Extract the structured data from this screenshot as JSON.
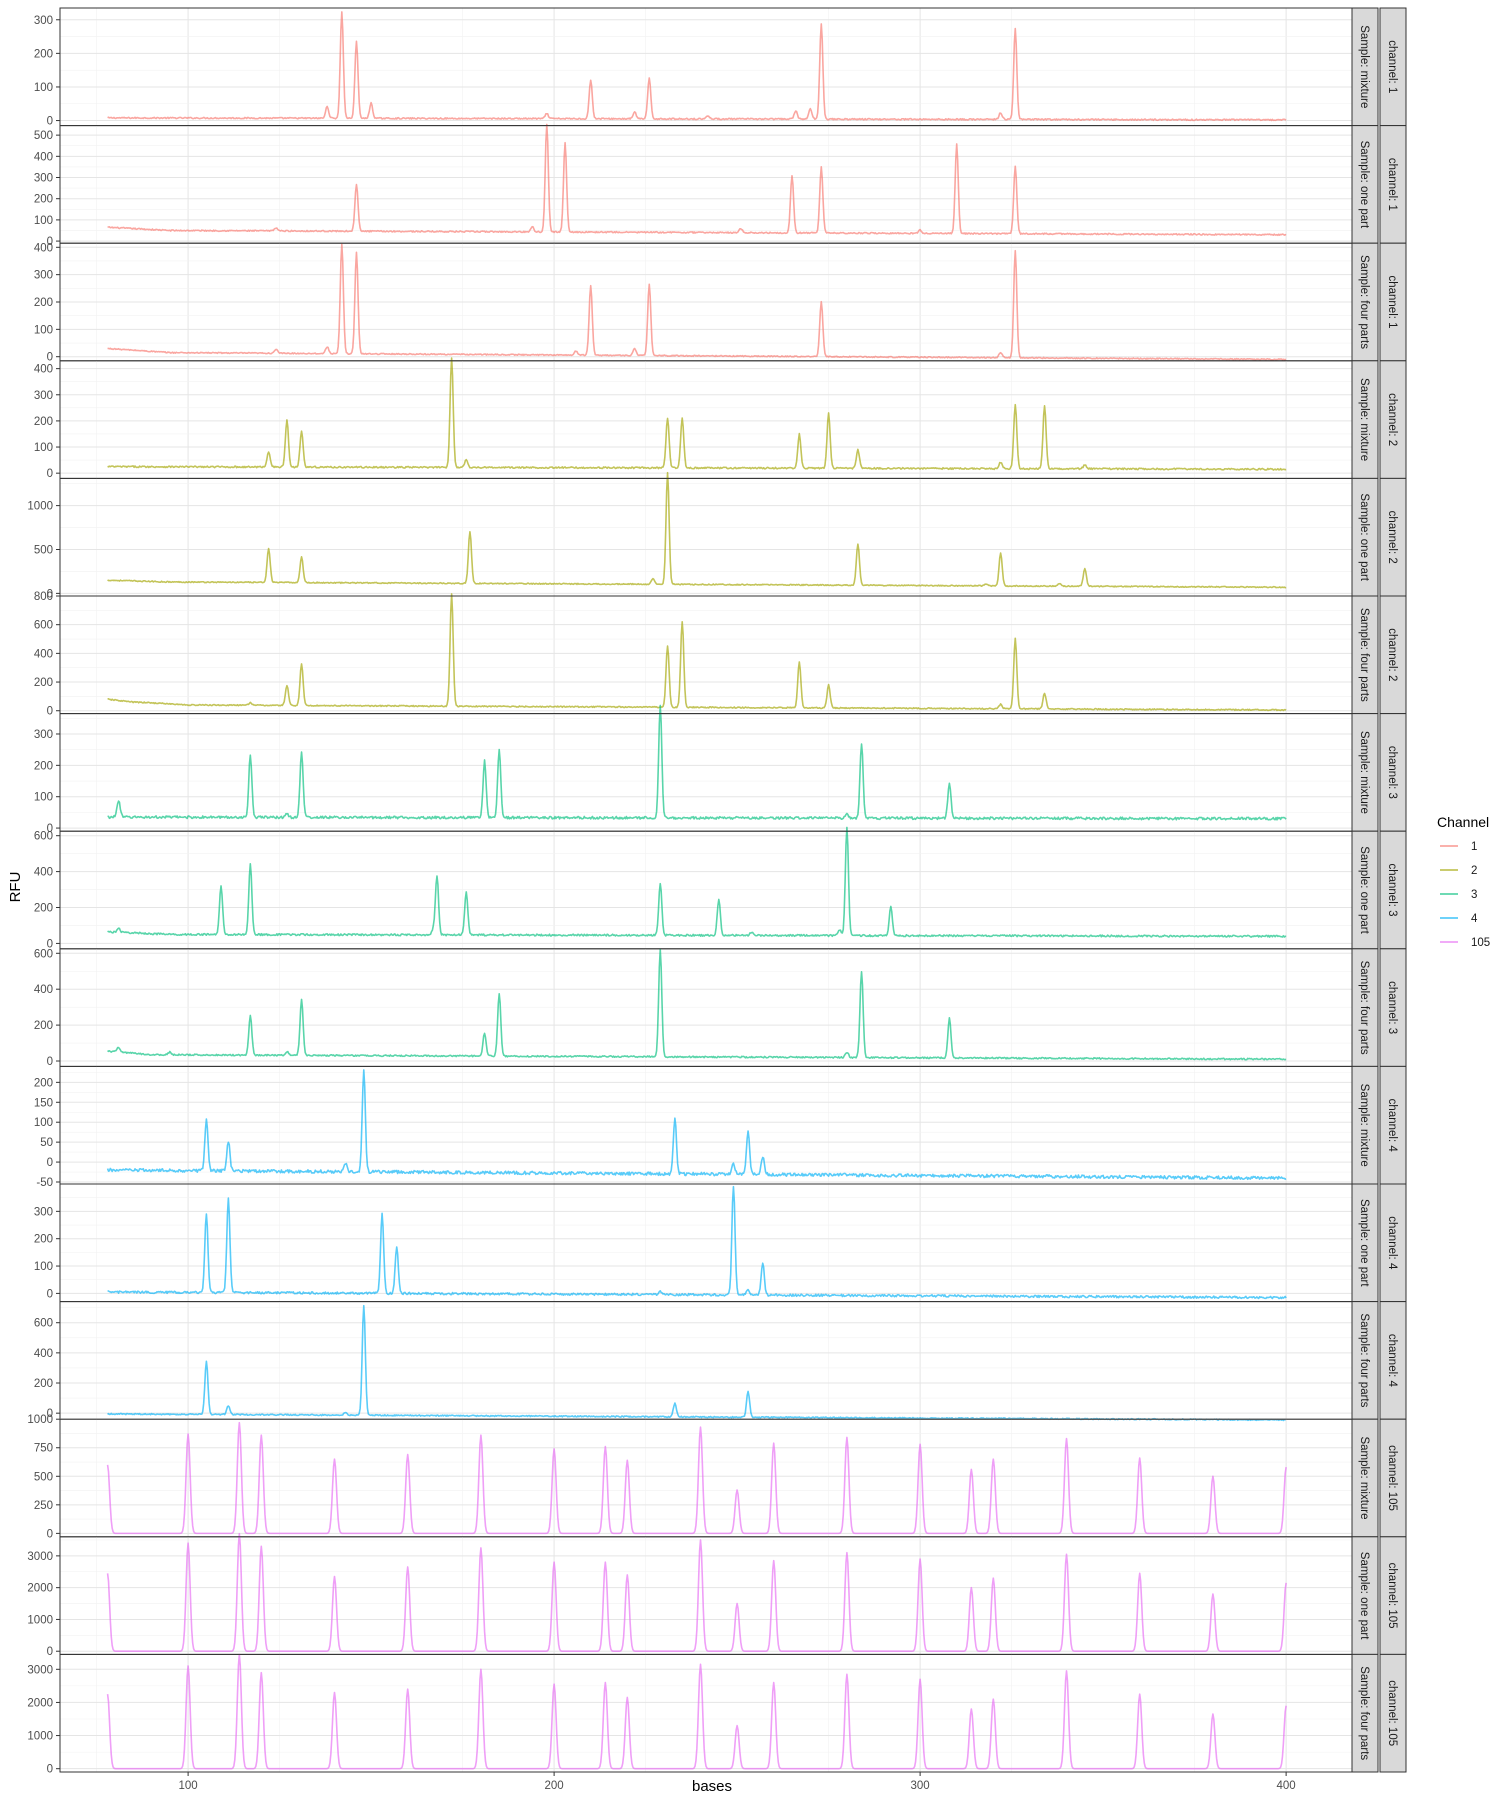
{
  "chart_data": {
    "type": "line",
    "xlabel": "bases",
    "ylabel": "RFU",
    "x_ticks": [
      100,
      200,
      300,
      400
    ],
    "x_range": [
      65,
      418
    ],
    "grid": true,
    "legend": {
      "title": "Channel",
      "placement": "right",
      "items": [
        {
          "label": "1",
          "color": "#F8766D"
        },
        {
          "label": "2",
          "color": "#A3A500"
        },
        {
          "label": "3",
          "color": "#00BF7D"
        },
        {
          "label": "4",
          "color": "#00B0F6"
        },
        {
          "label": "105",
          "color": "#E76BF3"
        }
      ]
    },
    "panels": [
      {
        "channel": "1",
        "strip_channel": "channel: 1",
        "strip_sample": "Sample: mixture",
        "color": "#F8766D",
        "ylim": [
          -15,
          335
        ],
        "yticks": [
          0,
          100,
          200,
          300
        ],
        "baseline": [
          [
            78,
            8
          ],
          [
            400,
            2
          ]
        ],
        "noise": 2,
        "peaks": [
          [
            138,
            35
          ],
          [
            142,
            315
          ],
          [
            146,
            230
          ],
          [
            150,
            45
          ],
          [
            198,
            15
          ],
          [
            210,
            115
          ],
          [
            222,
            20
          ],
          [
            226,
            120
          ],
          [
            242,
            10
          ],
          [
            266,
            25
          ],
          [
            270,
            30
          ],
          [
            273,
            285
          ],
          [
            322,
            20
          ],
          [
            326,
            270
          ]
        ]
      },
      {
        "channel": "1",
        "strip_channel": "channel: 1",
        "strip_sample": "Sample: one part",
        "color": "#F8766D",
        "ylim": [
          -10,
          545
        ],
        "yticks": [
          0,
          100,
          200,
          300,
          400,
          500
        ],
        "baseline": [
          [
            78,
            65
          ],
          [
            95,
            50
          ],
          [
            400,
            30
          ]
        ],
        "noise": 3,
        "peaks": [
          [
            124,
            15
          ],
          [
            146,
            220
          ],
          [
            194,
            25
          ],
          [
            198,
            510
          ],
          [
            203,
            420
          ],
          [
            251,
            20
          ],
          [
            265,
            270
          ],
          [
            273,
            310
          ],
          [
            300,
            15
          ],
          [
            310,
            420
          ],
          [
            326,
            320
          ]
        ]
      },
      {
        "channel": "1",
        "strip_channel": "channel: 1",
        "strip_sample": "Sample: four parts",
        "color": "#F8766D",
        "ylim": [
          -15,
          415
        ],
        "yticks": [
          0,
          100,
          200,
          300,
          400
        ],
        "baseline": [
          [
            78,
            30
          ],
          [
            95,
            15
          ],
          [
            400,
            -10
          ]
        ],
        "noise": 2,
        "peaks": [
          [
            124,
            15
          ],
          [
            138,
            25
          ],
          [
            142,
            400
          ],
          [
            146,
            370
          ],
          [
            206,
            15
          ],
          [
            210,
            255
          ],
          [
            222,
            25
          ],
          [
            226,
            260
          ],
          [
            273,
            200
          ],
          [
            322,
            20
          ],
          [
            326,
            390
          ]
        ]
      },
      {
        "channel": "2",
        "strip_channel": "channel: 2",
        "strip_sample": "Sample: mixture",
        "color": "#A3A500",
        "ylim": [
          -20,
          430
        ],
        "yticks": [
          0,
          100,
          200,
          300,
          400
        ],
        "baseline": [
          [
            78,
            25
          ],
          [
            400,
            15
          ]
        ],
        "noise": 3,
        "peaks": [
          [
            122,
            60
          ],
          [
            127,
            180
          ],
          [
            131,
            140
          ],
          [
            172,
            420
          ],
          [
            176,
            30
          ],
          [
            231,
            190
          ],
          [
            235,
            190
          ],
          [
            267,
            130
          ],
          [
            275,
            210
          ],
          [
            283,
            70
          ],
          [
            322,
            25
          ],
          [
            326,
            245
          ],
          [
            334,
            240
          ],
          [
            345,
            15
          ]
        ]
      },
      {
        "channel": "2",
        "strip_channel": "channel: 2",
        "strip_sample": "Sample: one part",
        "color": "#A3A500",
        "ylim": [
          -30,
          1310
        ],
        "yticks": [
          0,
          500,
          1000
        ],
        "baseline": [
          [
            78,
            150
          ],
          [
            95,
            130
          ],
          [
            400,
            70
          ]
        ],
        "noise": 6,
        "peaks": [
          [
            122,
            390
          ],
          [
            131,
            290
          ],
          [
            177,
            590
          ],
          [
            227,
            60
          ],
          [
            231,
            1270
          ],
          [
            283,
            470
          ],
          [
            318,
            20
          ],
          [
            322,
            380
          ],
          [
            338,
            30
          ],
          [
            345,
            200
          ]
        ]
      },
      {
        "channel": "2",
        "strip_channel": "channel: 2",
        "strip_sample": "Sample: four parts",
        "color": "#A3A500",
        "ylim": [
          -20,
          800
        ],
        "yticks": [
          0,
          200,
          400,
          600,
          800
        ],
        "baseline": [
          [
            78,
            80
          ],
          [
            85,
            60
          ],
          [
            90,
            55
          ],
          [
            100,
            40
          ],
          [
            400,
            5
          ]
        ],
        "noise": 4,
        "peaks": [
          [
            117,
            20
          ],
          [
            127,
            140
          ],
          [
            131,
            290
          ],
          [
            172,
            780
          ],
          [
            231,
            430
          ],
          [
            235,
            600
          ],
          [
            267,
            320
          ],
          [
            275,
            160
          ],
          [
            322,
            30
          ],
          [
            326,
            490
          ],
          [
            334,
            110
          ]
        ]
      },
      {
        "channel": "3",
        "strip_channel": "channel: 3",
        "strip_sample": "Sample: mixture",
        "color": "#00BF7D",
        "ylim": [
          -10,
          365
        ],
        "yticks": [
          0,
          100,
          200,
          300
        ],
        "baseline": [
          [
            78,
            35
          ],
          [
            400,
            30
          ]
        ],
        "noise": 4,
        "peaks": [
          [
            81,
            55
          ],
          [
            117,
            200
          ],
          [
            127,
            10
          ],
          [
            131,
            210
          ],
          [
            181,
            180
          ],
          [
            185,
            220
          ],
          [
            229,
            360
          ],
          [
            280,
            15
          ],
          [
            284,
            240
          ],
          [
            308,
            115
          ]
        ]
      },
      {
        "channel": "3",
        "strip_channel": "channel: 3",
        "strip_sample": "Sample: one part",
        "color": "#00BF7D",
        "ylim": [
          -30,
          625
        ],
        "yticks": [
          0,
          200,
          400,
          600
        ],
        "baseline": [
          [
            78,
            65
          ],
          [
            95,
            50
          ],
          [
            400,
            40
          ]
        ],
        "noise": 5,
        "peaks": [
          [
            81,
            20
          ],
          [
            109,
            270
          ],
          [
            117,
            390
          ],
          [
            167,
            30
          ],
          [
            168,
            330
          ],
          [
            176,
            240
          ],
          [
            229,
            290
          ],
          [
            245,
            200
          ],
          [
            254,
            20
          ],
          [
            278,
            30
          ],
          [
            280,
            600
          ],
          [
            292,
            160
          ]
        ]
      },
      {
        "channel": "3",
        "strip_channel": "channel: 3",
        "strip_sample": "Sample: four parts",
        "color": "#00BF7D",
        "ylim": [
          -30,
          625
        ],
        "yticks": [
          0,
          200,
          400,
          600
        ],
        "baseline": [
          [
            78,
            55
          ],
          [
            90,
            35
          ],
          [
            400,
            10
          ]
        ],
        "noise": 4,
        "peaks": [
          [
            81,
            25
          ],
          [
            95,
            15
          ],
          [
            117,
            220
          ],
          [
            127,
            20
          ],
          [
            131,
            310
          ],
          [
            181,
            130
          ],
          [
            185,
            350
          ],
          [
            229,
            600
          ],
          [
            280,
            30
          ],
          [
            284,
            480
          ],
          [
            308,
            220
          ]
        ]
      },
      {
        "channel": "4",
        "strip_channel": "channel: 4",
        "strip_sample": "Sample: mixture",
        "color": "#00B0F6",
        "ylim": [
          -55,
          240
        ],
        "yticks": [
          -50,
          0,
          50,
          100,
          150,
          200
        ],
        "baseline": [
          [
            78,
            -20
          ],
          [
            400,
            -40
          ]
        ],
        "noise": 4,
        "peaks": [
          [
            105,
            130
          ],
          [
            111,
            75
          ],
          [
            143,
            20
          ],
          [
            148,
            255
          ],
          [
            233,
            140
          ],
          [
            249,
            25
          ],
          [
            253,
            110
          ],
          [
            257,
            45
          ]
        ]
      },
      {
        "channel": "4",
        "strip_channel": "channel: 4",
        "strip_sample": "Sample: one part",
        "color": "#00B0F6",
        "ylim": [
          -30,
          400
        ],
        "yticks": [
          0,
          100,
          200,
          300
        ],
        "baseline": [
          [
            78,
            5
          ],
          [
            400,
            -15
          ]
        ],
        "noise": 4,
        "peaks": [
          [
            105,
            290
          ],
          [
            111,
            345
          ],
          [
            153,
            290
          ],
          [
            157,
            170
          ],
          [
            229,
            10
          ],
          [
            249,
            400
          ],
          [
            253,
            20
          ],
          [
            257,
            120
          ]
        ]
      },
      {
        "channel": "4",
        "strip_channel": "channel: 4",
        "strip_sample": "Sample: four parts",
        "color": "#00B0F6",
        "ylim": [
          -40,
          740
        ],
        "yticks": [
          0,
          200,
          400,
          600
        ],
        "baseline": [
          [
            78,
            -5
          ],
          [
            400,
            -45
          ]
        ],
        "noise": 4,
        "peaks": [
          [
            105,
            350
          ],
          [
            111,
            60
          ],
          [
            143,
            20
          ],
          [
            148,
            730
          ],
          [
            233,
            90
          ],
          [
            253,
            170
          ]
        ]
      },
      {
        "channel": "105",
        "strip_channel": "channel: 105",
        "strip_sample": "Sample: mixture",
        "color": "#E76BF3",
        "ylim": [
          -30,
          1000
        ],
        "yticks": [
          0,
          250,
          500,
          750,
          1000
        ],
        "baseline": [
          [
            78,
            0
          ],
          [
            400,
            0
          ]
        ],
        "noise": 0,
        "peaks": [
          [
            78,
            600
          ],
          [
            100,
            870
          ],
          [
            114,
            970
          ],
          [
            120,
            860
          ],
          [
            140,
            650
          ],
          [
            160,
            690
          ],
          [
            180,
            860
          ],
          [
            200,
            740
          ],
          [
            214,
            760
          ],
          [
            220,
            640
          ],
          [
            240,
            930
          ],
          [
            250,
            380
          ],
          [
            260,
            790
          ],
          [
            280,
            840
          ],
          [
            300,
            780
          ],
          [
            314,
            560
          ],
          [
            320,
            650
          ],
          [
            340,
            830
          ],
          [
            360,
            660
          ],
          [
            380,
            500
          ],
          [
            400,
            580
          ]
        ]
      },
      {
        "channel": "105",
        "strip_channel": "channel: 105",
        "strip_sample": "Sample: one part",
        "color": "#E76BF3",
        "ylim": [
          -100,
          3600
        ],
        "yticks": [
          0,
          1000,
          2000,
          3000
        ],
        "baseline": [
          [
            78,
            0
          ],
          [
            400,
            0
          ]
        ],
        "noise": 0,
        "peaks": [
          [
            78,
            2450
          ],
          [
            100,
            3400
          ],
          [
            114,
            3700
          ],
          [
            120,
            3300
          ],
          [
            140,
            2350
          ],
          [
            160,
            2650
          ],
          [
            180,
            3250
          ],
          [
            200,
            2800
          ],
          [
            214,
            2800
          ],
          [
            220,
            2400
          ],
          [
            240,
            3500
          ],
          [
            250,
            1500
          ],
          [
            260,
            2850
          ],
          [
            280,
            3100
          ],
          [
            300,
            2900
          ],
          [
            314,
            2000
          ],
          [
            320,
            2300
          ],
          [
            340,
            3050
          ],
          [
            360,
            2450
          ],
          [
            380,
            1800
          ],
          [
            400,
            2150
          ]
        ]
      },
      {
        "channel": "105",
        "strip_channel": "channel: 105",
        "strip_sample": "Sample: four parts",
        "color": "#E76BF3",
        "ylim": [
          -100,
          3450
        ],
        "yticks": [
          0,
          1000,
          2000,
          3000
        ],
        "baseline": [
          [
            78,
            0
          ],
          [
            400,
            0
          ]
        ],
        "noise": 0,
        "peaks": [
          [
            78,
            2250
          ],
          [
            100,
            3100
          ],
          [
            114,
            3450
          ],
          [
            120,
            2900
          ],
          [
            140,
            2300
          ],
          [
            160,
            2400
          ],
          [
            180,
            3000
          ],
          [
            200,
            2550
          ],
          [
            214,
            2600
          ],
          [
            220,
            2150
          ],
          [
            240,
            3150
          ],
          [
            250,
            1300
          ],
          [
            260,
            2600
          ],
          [
            280,
            2850
          ],
          [
            300,
            2700
          ],
          [
            314,
            1800
          ],
          [
            320,
            2100
          ],
          [
            340,
            2950
          ],
          [
            360,
            2250
          ],
          [
            380,
            1650
          ],
          [
            400,
            1900
          ]
        ]
      }
    ]
  }
}
